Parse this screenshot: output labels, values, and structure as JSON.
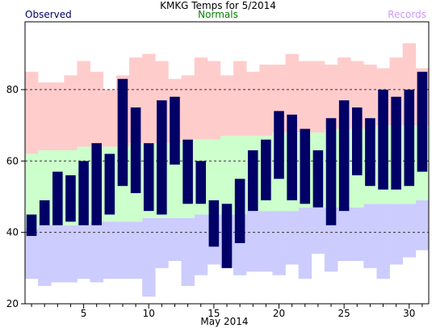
{
  "chart_data": {
    "type": "bar",
    "title": "KMKG Temps for 5/2014",
    "xlabel": "May 2014",
    "ylabel": "",
    "legend": {
      "observed": "Observed",
      "normals": "Normals",
      "records": "Records",
      "placement": "top"
    },
    "colors": {
      "observed": "#000066",
      "normals_fill": "#ccffcc",
      "records_high_fill": "#ffcccc",
      "records_low_fill": "#ccccff",
      "normals_text": "#008000",
      "records_text": "#cc99ff",
      "grid": "#333333"
    },
    "x": [
      1,
      2,
      3,
      4,
      5,
      6,
      7,
      8,
      9,
      10,
      11,
      12,
      13,
      14,
      15,
      16,
      17,
      18,
      19,
      20,
      21,
      22,
      23,
      24,
      25,
      26,
      27,
      28,
      29,
      30,
      31
    ],
    "xlim": [
      0.5,
      31.5
    ],
    "x_ticks": [
      5,
      10,
      15,
      20,
      25,
      30
    ],
    "ylim": [
      20,
      99
    ],
    "y_ticks": [
      20,
      40,
      60,
      80
    ],
    "grid": {
      "horizontal_dashed": [
        40,
        60,
        80
      ]
    },
    "observed_high": [
      45,
      49,
      57,
      56,
      60,
      65,
      62,
      83,
      75,
      65,
      77,
      78,
      66,
      60,
      49,
      48,
      55,
      63,
      66,
      74,
      73,
      69,
      63,
      72,
      77,
      75,
      72,
      80,
      78,
      80,
      85
    ],
    "observed_low": [
      39,
      42,
      42,
      43,
      42,
      42,
      45,
      53,
      51,
      46,
      45,
      59,
      48,
      48,
      36,
      30,
      37,
      46,
      49,
      55,
      49,
      48,
      47,
      42,
      46,
      56,
      53,
      52,
      52,
      53,
      57
    ],
    "normal_high": [
      62,
      63,
      63,
      63,
      64,
      64,
      64,
      64,
      65,
      65,
      65,
      65,
      66,
      66,
      66,
      67,
      67,
      67,
      67,
      68,
      68,
      68,
      68,
      69,
      69,
      69,
      69,
      70,
      70,
      70,
      70
    ],
    "normal_low": [
      41,
      42,
      42,
      42,
      42,
      43,
      43,
      43,
      43,
      44,
      44,
      44,
      44,
      45,
      45,
      45,
      45,
      46,
      46,
      46,
      46,
      47,
      47,
      47,
      47,
      47,
      48,
      48,
      48,
      48,
      49
    ],
    "record_high": [
      85,
      82,
      82,
      84,
      88,
      85,
      80,
      84,
      89,
      90,
      88,
      83,
      84,
      89,
      88,
      84,
      88,
      85,
      87,
      87,
      90,
      88,
      88,
      87,
      89,
      88,
      87,
      86,
      89,
      93,
      86
    ],
    "record_low": [
      27,
      25,
      26,
      26,
      27,
      26,
      27,
      27,
      27,
      22,
      30,
      32,
      25,
      28,
      31,
      30,
      28,
      29,
      29,
      28,
      31,
      27,
      34,
      29,
      32,
      32,
      30,
      27,
      31,
      33,
      35
    ]
  }
}
